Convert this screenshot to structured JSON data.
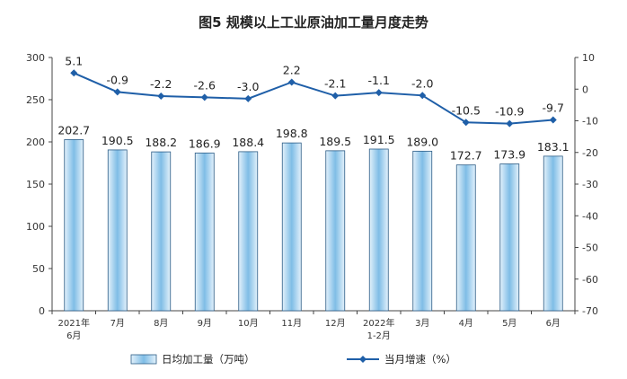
{
  "chart_data": {
    "type": "bar+line",
    "title": "图5  规模以上工业原油加工量月度走势",
    "categories": [
      [
        "2021年",
        "6月"
      ],
      [
        "7月"
      ],
      [
        "8月"
      ],
      [
        "9月"
      ],
      [
        "10月"
      ],
      [
        "11月"
      ],
      [
        "12月"
      ],
      [
        "2022年",
        "1-2月"
      ],
      [
        "3月"
      ],
      [
        "4月"
      ],
      [
        "5月"
      ],
      [
        "6月"
      ]
    ],
    "series": [
      {
        "name": "日均加工量（万吨）",
        "type": "bar",
        "axis": "left",
        "values": [
          202.7,
          190.5,
          188.2,
          186.9,
          188.4,
          198.8,
          189.5,
          191.5,
          189.0,
          172.7,
          173.9,
          183.1
        ],
        "labels": [
          "202.7",
          "190.5",
          "188.2",
          "186.9",
          "188.4",
          "198.8",
          "189.5",
          "191.5",
          "189.0",
          "172.7",
          "173.9",
          "183.1"
        ]
      },
      {
        "name": "当月增速（%）",
        "type": "line",
        "axis": "right",
        "values": [
          5.1,
          -0.9,
          -2.2,
          -2.6,
          -3.0,
          2.2,
          -2.1,
          -1.1,
          -2.0,
          -10.5,
          -10.9,
          -9.7
        ],
        "labels": [
          "5.1",
          "-0.9",
          "-2.2",
          "-2.6",
          "-3.0",
          "2.2",
          "-2.1",
          "-1.1",
          "-2.0",
          "-10.5",
          "-10.9",
          "-9.7"
        ]
      }
    ],
    "y_left": {
      "min": 0,
      "max": 300,
      "ticks": [
        0,
        50,
        100,
        150,
        200,
        250,
        300
      ]
    },
    "y_right": {
      "min": -70,
      "max": 10,
      "ticks": [
        10,
        0,
        -10,
        -20,
        -30,
        -40,
        -50,
        -60,
        -70
      ]
    },
    "grid": false,
    "legend": "bottom",
    "colors": {
      "bar_fill_light": "#e3f1fb",
      "bar_fill_dark": "#7fbde6",
      "bar_stroke": "#2b5c86",
      "line": "#1f5fa8",
      "axis": "#444444"
    }
  }
}
